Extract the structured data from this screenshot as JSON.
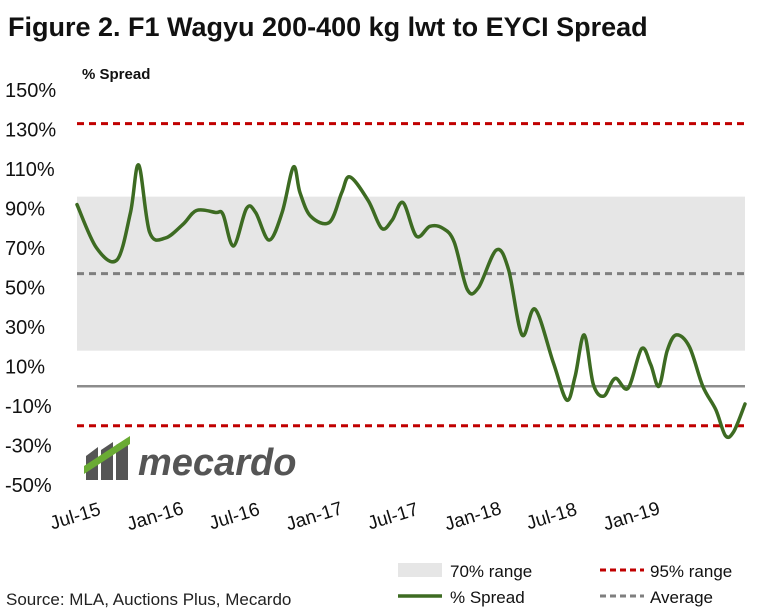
{
  "title": "Figure 2. F1 Wagyu 200-400 kg lwt to EYCI Spread",
  "source": "Source: MLA, Auctions Plus, Mecardo",
  "logo_text": "mecardo",
  "colors": {
    "series": "#3d6b22",
    "band": "#e6e6e6",
    "p95": "#c00000",
    "average": "#7f7f7f",
    "zero": "#8c8c8c",
    "logo_dark": "#555555",
    "logo_green": "#6aab34"
  },
  "chart_data": {
    "type": "line",
    "ylabel": "% Spread",
    "ylim": [
      -50,
      150
    ],
    "y_ticks": [
      "150%",
      "130%",
      "110%",
      "90%",
      "70%",
      "50%",
      "30%",
      "10%",
      "-10%",
      "-30%",
      "-50%"
    ],
    "x_ticks": [
      "Jul-15",
      "Jan-16",
      "Jul-16",
      "Jan-17",
      "Jul-17",
      "Jan-18",
      "Jul-18",
      "Jan-19"
    ],
    "grid": false,
    "legend_position": "bottom-right",
    "band_70": {
      "label": "70% range",
      "low": 18,
      "high": 96
    },
    "range_95": {
      "label": "95% range",
      "low": -20,
      "high": 133
    },
    "average": {
      "label": "Average",
      "value": 57
    },
    "series": [
      {
        "name": "% Spread",
        "x": [
          "2015-07-01",
          "2015-08-15",
          "2015-10-01",
          "2015-11-01",
          "2015-11-20",
          "2015-12-15",
          "2016-01-20",
          "2016-03-01",
          "2016-04-01",
          "2016-05-15",
          "2016-06-01",
          "2016-06-25",
          "2016-07-25",
          "2016-08-15",
          "2016-09-15",
          "2016-10-15",
          "2016-11-10",
          "2016-11-25",
          "2016-12-20",
          "2017-02-01",
          "2017-03-01",
          "2017-03-20",
          "2017-05-01",
          "2017-06-01",
          "2017-06-25",
          "2017-07-20",
          "2017-08-20",
          "2017-09-20",
          "2017-10-20",
          "2017-11-15",
          "2017-12-15",
          "2018-01-10",
          "2018-02-20",
          "2018-03-20",
          "2018-04-20",
          "2018-05-20",
          "2018-07-01",
          "2018-08-01",
          "2018-08-20",
          "2018-09-10",
          "2018-10-01",
          "2018-10-25",
          "2018-11-20",
          "2018-12-20",
          "2019-01-20",
          "2019-02-10",
          "2019-03-01",
          "2019-03-20",
          "2019-04-10",
          "2019-05-10",
          "2019-06-10",
          "2019-07-10",
          "2019-08-01",
          "2019-08-20",
          "2019-09-15"
        ],
        "y": [
          92,
          70,
          64,
          88,
          112,
          78,
          75,
          82,
          89,
          88,
          87,
          71,
          90,
          88,
          74,
          88,
          111,
          98,
          86,
          83,
          98,
          106,
          94,
          80,
          84,
          93,
          76,
          81,
          80,
          73,
          49,
          50,
          69,
          59,
          26,
          39,
          12,
          -7,
          5,
          26,
          1,
          -5,
          4,
          -1,
          19,
          11,
          0,
          18,
          26,
          20,
          0,
          -12,
          -25,
          -23,
          -9
        ]
      }
    ]
  }
}
